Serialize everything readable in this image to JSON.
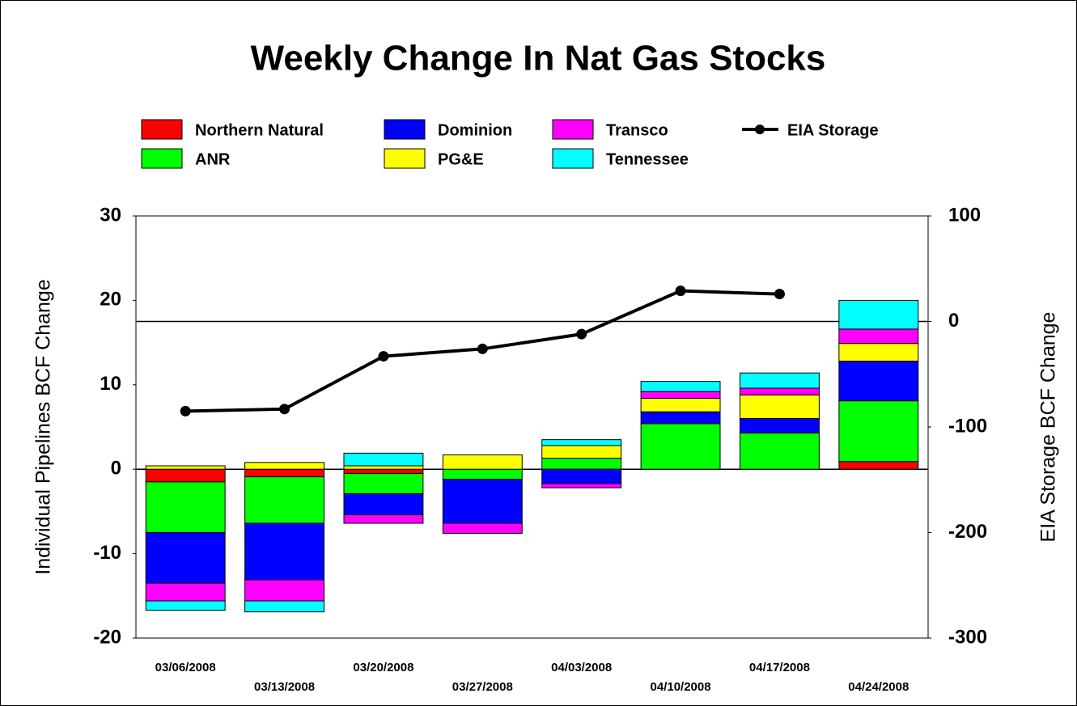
{
  "chart_data": {
    "type": "bar",
    "stacked": true,
    "title": "Weekly Change In Nat Gas Stocks",
    "y_label": "Individual Pipelines BCF Change",
    "y2_label": "EIA Storage BCF Change",
    "categories": [
      "03/06/2008",
      "03/13/2008",
      "03/20/2008",
      "03/27/2008",
      "04/03/2008",
      "04/10/2008",
      "04/17/2008",
      "04/24/2008"
    ],
    "series": [
      {
        "name": "Northern Natural",
        "color": "#ff0000",
        "values": [
          -1.5,
          -0.9,
          -0.5,
          0,
          0,
          0,
          0,
          0.9
        ]
      },
      {
        "name": "ANR",
        "color": "#00ff00",
        "values": [
          -6.0,
          -5.5,
          -2.4,
          -1.2,
          1.3,
          5.4,
          4.3,
          7.2
        ]
      },
      {
        "name": "Dominion",
        "color": "#0000ff",
        "values": [
          -6.0,
          -6.7,
          -2.5,
          -5.2,
          -1.7,
          1.4,
          1.7,
          4.7
        ]
      },
      {
        "name": "PG&E",
        "color": "#ffff00",
        "values": [
          0.4,
          0.8,
          0.4,
          1.7,
          1.5,
          1.6,
          2.8,
          2.1
        ]
      },
      {
        "name": "Transco",
        "color": "#ff00ff",
        "values": [
          -2.1,
          -2.5,
          -1.0,
          -1.2,
          -0.5,
          0.8,
          0.8,
          1.7
        ]
      },
      {
        "name": "Tennessee",
        "color": "#00ffff",
        "values": [
          -1.1,
          -1.3,
          1.5,
          0,
          0.7,
          1.2,
          1.8,
          3.4
        ]
      },
      {
        "name": "EIA Storage",
        "color": "#000000",
        "type": "line",
        "axis": "y2",
        "values": [
          -85,
          -83,
          -33,
          -26,
          -12,
          29,
          26,
          null
        ]
      }
    ],
    "ylim": [
      -20,
      30
    ],
    "yticks": [
      -20,
      -10,
      0,
      10,
      20,
      30
    ],
    "y2lim": [
      -300,
      100
    ],
    "y2ticks": [
      -300,
      -200,
      -100,
      0,
      100
    ],
    "grid": false
  }
}
